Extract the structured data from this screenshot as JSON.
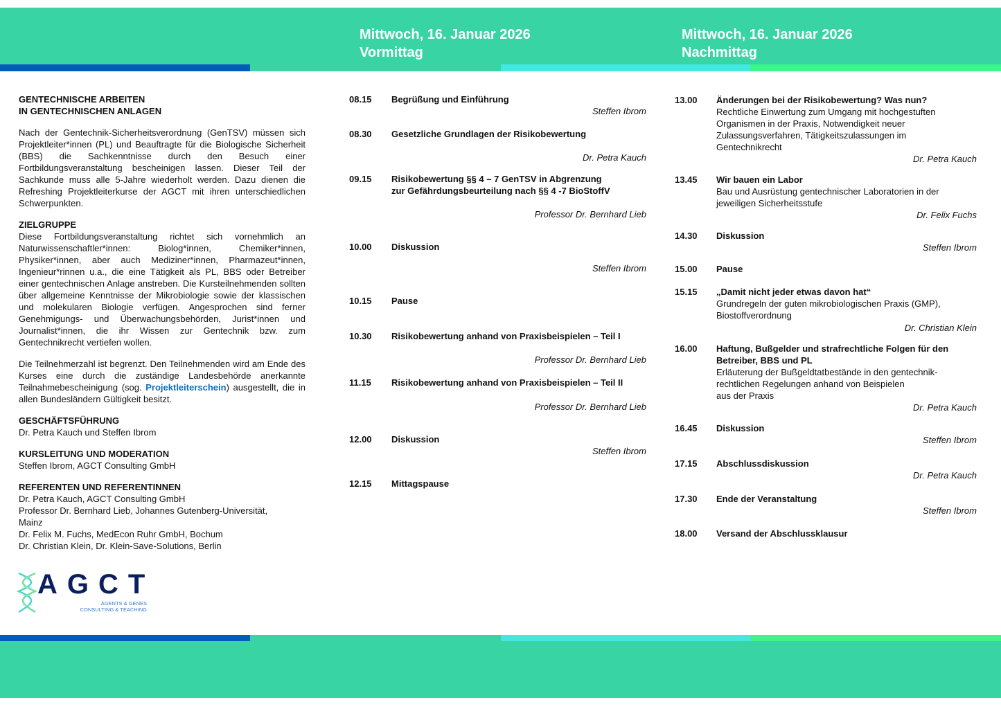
{
  "colors": {
    "band": "#38d4a3",
    "stripe_blue": "#005bbb",
    "stripe_cyan": "#45e8e0",
    "stripe_green": "#3df58a",
    "link": "#0a6fc2",
    "logo_navy": "#0b1f5e"
  },
  "header": {
    "morning": {
      "date": "Mittwoch, 16. Januar 2026",
      "part": "Vormittag"
    },
    "afternoon": {
      "date": "Mittwoch, 16. Januar 2026",
      "part": "Nachmittag"
    }
  },
  "intro": {
    "title_lines": [
      "GENTECHNISCHE ARBEITEN",
      "IN GENTECHNISCHEN ANLAGEN"
    ],
    "text": "Nach der Gentechnik-Sicherheitsverordnung (GenTSV) müssen sich Projektleiter*innen (PL) und Beauftragte für die Biologische Sicherheit (BBS) die Sachkenntnisse durch den Besuch einer Fortbildungsveranstaltung bescheinigen lassen. Dieser Teil der Sachkunde muss alle 5-Jahre wiederholt werden. Dazu dienen die Refreshing Projektleiterkurse der AGCT mit ihren unterschiedlichen Schwerpunkten.",
    "target_heading": "ZIELGRUPPE",
    "target_text": "Diese Fortbildungsveranstaltung richtet sich vornehmlich an Naturwissenschaftler*innen: Biolog*innen, Chemiker*innen, Physiker*innen, aber auch Mediziner*innen, Pharmazeut*innen, Ingenieur*rinnen u.a., die eine Tätigkeit als PL, BBS oder Betreiber einer gentechnischen Anlage anstreben. Die Kursteilnehmenden sollten über allgemeine Kenntnisse der Mikrobiologie sowie der klassischen und molekularen Biologie verfügen. Angesprochen sind ferner Genehmigungs- und Überwachungsbehörden, Jurist*innen und Journalist*innen, die ihr Wissen zur Gentechnik bzw. zum Gentechnikrecht vertiefen wollen.",
    "participants_before": "Die Teilnehmerzahl ist begrenzt. Den Teilnehmenden wird am Ende des Kurses eine durch die zuständige Landesbehörde anerkannte Teilnahmebescheinigung (sog. ",
    "participants_link": "Projektleiterschein",
    "participants_after": ") ausgestellt, die in allen Bundesländern Gültigkeit besitzt.",
    "management_heading": "GESCHÄFTSFÜHRUNG",
    "management_text": "Dr. Petra Kauch und Steffen Ibrom",
    "lead_heading": "KURSLEITUNG UND MODERATION",
    "lead_text": "Steffen Ibrom, AGCT Consulting GmbH",
    "speakers_heading": "REFERENTEN UND REFERENTINNEN",
    "speakers": [
      "Dr. Petra Kauch, AGCT Consulting GmbH",
      "Professor Dr. Bernhard Lieb, Johannes Gutenberg-Universität,",
      "Mainz",
      "Dr. Felix M. Fuchs, MedEcon Ruhr GmbH, Bochum",
      "Dr. Christian Klein, Dr. Klein-Save-Solutions, Berlin"
    ]
  },
  "logo": {
    "letters": "AGCT",
    "line1": "AGENTS & GENES",
    "line2": "CONSULTING & TEACHING"
  },
  "morning": [
    {
      "time": "08.15",
      "title": "Begrüßung und Einführung",
      "speaker": "Steffen Ibrom"
    },
    {
      "time": "08.30",
      "title": "Gesetzliche Grundlagen der Risikobewertung",
      "speaker": "Dr. Petra Kauch"
    },
    {
      "time": "09.15",
      "title": "Risikobewertung §§ 4 – 7 GenTSV in Abgrenzung\nzur Gefährdungsbeurteilung nach §§ 4 -7 BioStoffV",
      "speaker": "Professor Dr. Bernhard Lieb"
    },
    {
      "time": "10.00",
      "title": "Diskussion",
      "speaker": "Steffen Ibrom"
    },
    {
      "time": "10.15",
      "title": "Pause"
    },
    {
      "time": "10.30",
      "title": "Risikobewertung anhand von Praxisbeispielen – Teil I",
      "speaker": "Professor Dr. Bernhard Lieb"
    },
    {
      "time": "11.15",
      "title": "Risikobewertung anhand von Praxisbeispielen – Teil II",
      "speaker": "Professor Dr. Bernhard Lieb"
    },
    {
      "time": "12.00",
      "title": "Diskussion",
      "speaker": "Steffen Ibrom"
    },
    {
      "time": "12.15",
      "title": "Mittagspause"
    }
  ],
  "afternoon": [
    {
      "time": "13.00",
      "title": "Änderungen bei der Risikobewertung? Was nun?",
      "desc": "Rechtliche Einwertung zum Umgang mit hochgestuften\nOrganismen in der Praxis, Notwendigkeit neuer\nZulassungsverfahren, Tätigkeitszulassungen im\nGentechnikrecht",
      "speaker": "Dr. Petra Kauch"
    },
    {
      "time": "13.45",
      "title": "Wir bauen ein Labor",
      "desc": "Bau und Ausrüstung gentechnischer Laboratorien in der\njeweiligen Sicherheitsstufe",
      "speaker": "Dr. Felix Fuchs"
    },
    {
      "time": "14.30",
      "title": "Diskussion",
      "speaker": "Steffen Ibrom"
    },
    {
      "time": "15.00",
      "title": "Pause"
    },
    {
      "time": "15.15",
      "title": "„Damit nicht jeder etwas davon hat“",
      "desc": "Grundregeln der guten mikrobiologischen Praxis (GMP),\nBiostoffverordnung",
      "speaker": "Dr. Christian Klein"
    },
    {
      "time": "16.00",
      "title": "Haftung, Bußgelder und strafrechtliche Folgen für den\nBetreiber, BBS und PL",
      "desc": "Erläuterung der Bußgeldtatbestände in den gentechnik-\nrechtlichen Regelungen anhand von Beispielen\naus der Praxis",
      "speaker": "Dr. Petra Kauch"
    },
    {
      "time": "16.45",
      "title": "Diskussion",
      "speaker": "Steffen Ibrom"
    },
    {
      "time": "17.15",
      "title": "Abschlussdiskussion",
      "speaker": "Dr. Petra Kauch"
    },
    {
      "time": "17.30",
      "title": "Ende der Veranstaltung",
      "speaker": "Steffen Ibrom"
    },
    {
      "time": "18.00",
      "title": "Versand der Abschlussklausur"
    }
  ]
}
